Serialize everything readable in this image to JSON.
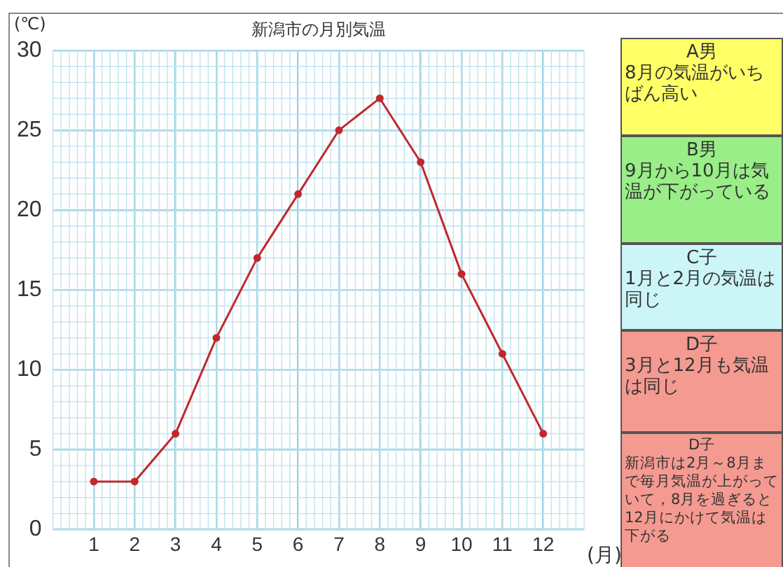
{
  "chart_data": {
    "type": "line",
    "title": "新潟市の月別気温",
    "ylabel": "(℃)",
    "xlabel": "(月)",
    "x": [
      1,
      2,
      3,
      4,
      5,
      6,
      7,
      8,
      9,
      10,
      11,
      12
    ],
    "series": [
      {
        "color": "#c0282d",
        "values": [
          3,
          3,
          6,
          12,
          17,
          21,
          25,
          27,
          23,
          16,
          11,
          6
        ]
      }
    ],
    "xlim": [
      0,
      13
    ],
    "xticks": [
      1,
      2,
      3,
      4,
      5,
      6,
      7,
      8,
      9,
      10,
      11,
      12
    ],
    "ylim": [
      0,
      30
    ],
    "yticks": [
      0,
      5,
      10,
      15,
      20,
      25,
      30
    ],
    "grid": true,
    "legend": false,
    "marker": "circle",
    "line_style": "solid",
    "annotations": [
      "A男",
      "8月の気温がいちばん高い",
      "B男",
      "9月から10月は気温が下がっている",
      "C子",
      "1月と2月の気温は同じ",
      "D子",
      "3月と12月も気温は同じ",
      "D子",
      "新潟市は2月～8月まで毎月気温が上がっていて，8月を過ぎると12月にかけて気温は下がる"
    ]
  }
}
